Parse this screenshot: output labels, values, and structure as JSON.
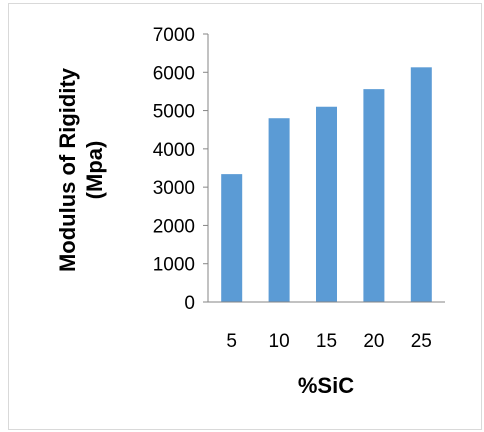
{
  "chart_data": {
    "type": "bar",
    "categories": [
      "5",
      "10",
      "15",
      "20",
      "25"
    ],
    "values": [
      3340,
      4800,
      5100,
      5560,
      6130
    ],
    "xlabel": "%SiC",
    "ylabel_line1": "Modulus of Rigidity",
    "ylabel_line2": "(Mpa)",
    "ylim": [
      0,
      7000
    ],
    "yticks": [
      "0",
      "1000",
      "2000",
      "3000",
      "4000",
      "5000",
      "6000",
      "7000"
    ],
    "grid": false,
    "bar_color": "#5b9bd5",
    "axis_color": "#868686"
  }
}
